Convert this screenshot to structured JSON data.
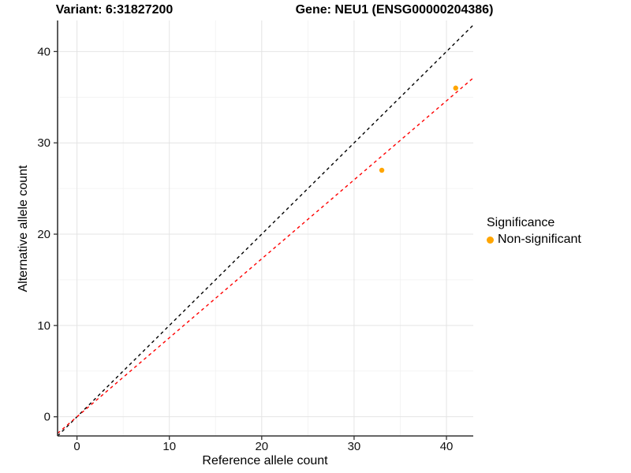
{
  "titles": {
    "variant": "Variant: 6:31827200",
    "gene": "Gene: NEU1 (ENSG00000204386)"
  },
  "chart_data": {
    "type": "scatter",
    "xlabel": "Reference allele count",
    "ylabel": "Alternative allele count",
    "xlim": [
      -2.1,
      42.9
    ],
    "ylim": [
      -2.1,
      43.4
    ],
    "x_major_ticks": [
      0,
      10,
      20,
      30,
      40
    ],
    "x_minor_ticks": [
      5,
      15,
      25,
      35
    ],
    "y_major_ticks": [
      0,
      10,
      20,
      30,
      40
    ],
    "y_minor_ticks": [
      5,
      15,
      25,
      35
    ],
    "grid": "major+minor",
    "points": [
      {
        "x": 33,
        "y": 27,
        "significance": "Non-significant"
      },
      {
        "x": 41,
        "y": 36,
        "significance": "Non-significant"
      }
    ],
    "lines": [
      {
        "name": "identity-line",
        "slope": 1,
        "intercept": 0,
        "color": "#000000",
        "dashed": true
      },
      {
        "name": "allelic-ratio-line",
        "slope": 0.865,
        "intercept": 0,
        "color": "#ff0000",
        "dashed": true
      }
    ],
    "legend": {
      "title": "Significance",
      "position": "right",
      "items": [
        {
          "label": "Non-significant",
          "color": "#ffa500"
        }
      ]
    },
    "colors": {
      "point": "#ffa500",
      "grid_major": "#e4e4e4",
      "grid_minor": "#f1f1f1",
      "axis_line": "#333333",
      "tick_label": "#111111"
    }
  }
}
